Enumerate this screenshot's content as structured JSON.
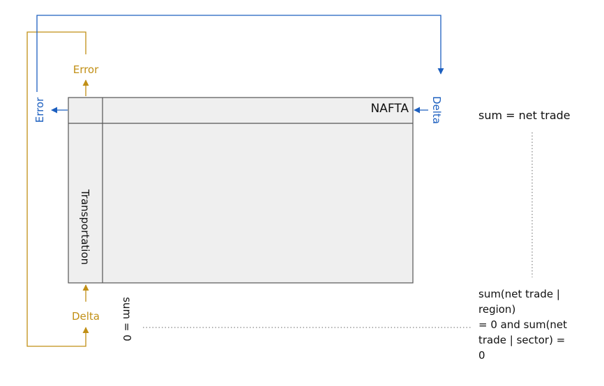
{
  "matrix": {
    "region_label": "NAFTA",
    "sector_label": "Transportation"
  },
  "gold_loop": {
    "error_label": "Error",
    "delta_label": "Delta"
  },
  "blue_loop": {
    "error_label": "Error",
    "delta_label": "Delta"
  },
  "constraints": {
    "column_sum": "sum = 0",
    "row_sum": "sum = net trade",
    "total_line1": "sum(net trade |",
    "total_line2": "region)",
    "total_line3": "= 0 and sum(net",
    "total_line4": "trade | sector) =",
    "total_line5": "0"
  },
  "colors": {
    "gold": "#C18F15",
    "blue": "#1C5FBF",
    "box_fill": "#EFEFEF",
    "box_stroke": "#555555"
  }
}
